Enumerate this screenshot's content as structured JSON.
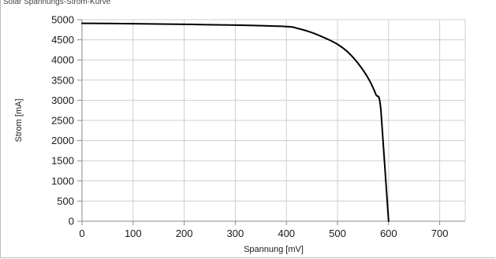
{
  "caption": "Solar Spannungs-Strom-Kurve",
  "chart_data": {
    "type": "line",
    "title": "",
    "xlabel": "Spannung [mV]",
    "ylabel": "Strom [mA]",
    "xlim": [
      0,
      750
    ],
    "ylim": [
      0,
      5000
    ],
    "x_ticks": [
      0,
      100,
      200,
      300,
      400,
      500,
      600,
      700
    ],
    "y_ticks": [
      0,
      500,
      1000,
      1500,
      2000,
      2500,
      3000,
      3500,
      4000,
      4500,
      5000
    ],
    "grid": true,
    "legend": "none",
    "line_color": "#000000",
    "series": [
      {
        "x": [
          0,
          100,
          200,
          300,
          400,
          420,
          450,
          480,
          500,
          520,
          540,
          560,
          575,
          585,
          600
        ],
        "y": [
          4910,
          4900,
          4885,
          4865,
          4830,
          4790,
          4680,
          4520,
          4390,
          4200,
          3920,
          3550,
          3150,
          2750,
          0
        ]
      }
    ]
  }
}
